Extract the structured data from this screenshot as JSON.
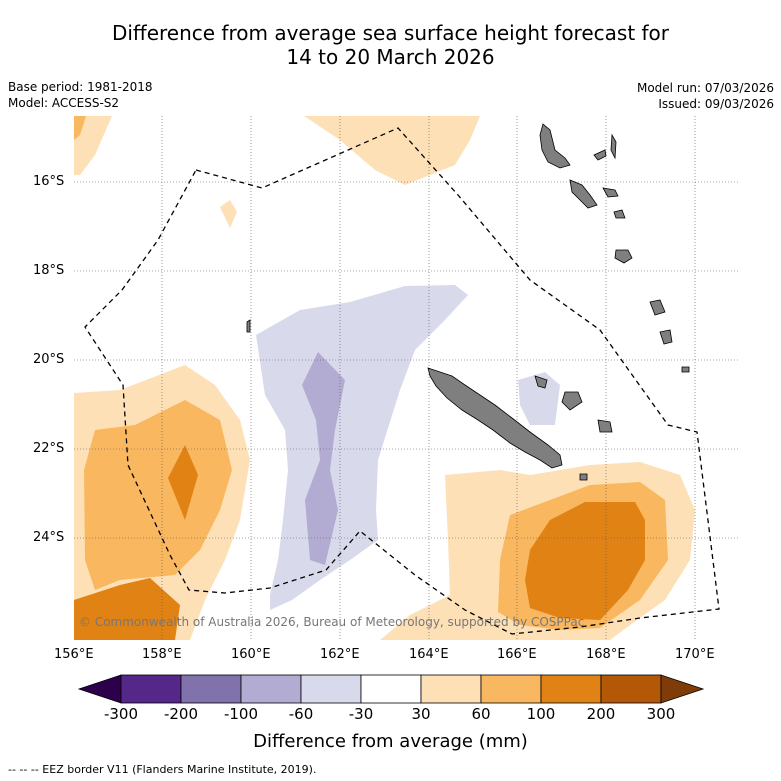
{
  "header": {
    "title_line1": "Difference from average sea surface height forecast for",
    "title_line2": "14 to 20 March 2026"
  },
  "meta": {
    "base_period": "Base period: 1981-2018",
    "model": "Model: ACCESS-S2",
    "model_run": "Model run: 07/03/2026",
    "issued": "Issued: 09/03/2026"
  },
  "map": {
    "lat_ticks": [
      "16°S",
      "18°S",
      "20°S",
      "22°S",
      "24°S"
    ],
    "lon_ticks": [
      "156°E",
      "158°E",
      "160°E",
      "162°E",
      "164°E",
      "166°E",
      "168°E",
      "170°E"
    ],
    "copyright": "© Commonwealth of Australia 2026, Bureau of Meteorology, supported by COSPPac",
    "landmass_color": "#7f7f7f",
    "eez_color": "#000000"
  },
  "colorbar": {
    "labels": [
      "-300",
      "-200",
      "-100",
      "-60",
      "-30",
      "30",
      "60",
      "100",
      "200",
      "300"
    ],
    "colors": [
      "#2d004b",
      "#542788",
      "#8073ac",
      "#b2abd2",
      "#d8daeb",
      "#ffffff",
      "#fee0b6",
      "#f9b75f",
      "#e08214",
      "#b35806",
      "#7f3b08"
    ],
    "title": "Difference from average (mm)"
  },
  "legend": {
    "eez": "--  --  -- EEZ border V11 (Flanders Marine Institute, 2019)."
  }
}
